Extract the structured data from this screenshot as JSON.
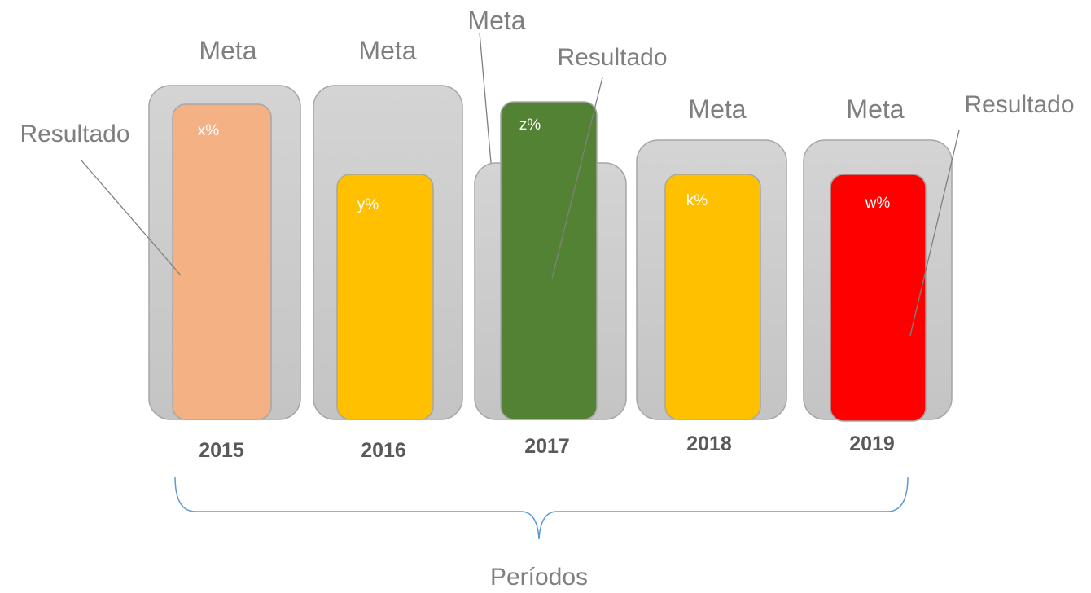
{
  "columns": [
    {
      "year": "2015",
      "meta": "Meta",
      "result": "x%"
    },
    {
      "year": "2016",
      "meta": "Meta",
      "result": "y%"
    },
    {
      "year": "2017",
      "meta": "Meta",
      "result": "z%"
    },
    {
      "year": "2018",
      "meta": "Meta",
      "result": "k%"
    },
    {
      "year": "2019",
      "meta": "Meta",
      "result": "w%"
    }
  ],
  "callouts": [
    "Resultado",
    "Resultado",
    "Resultado"
  ],
  "brace_label": "Períodos"
}
